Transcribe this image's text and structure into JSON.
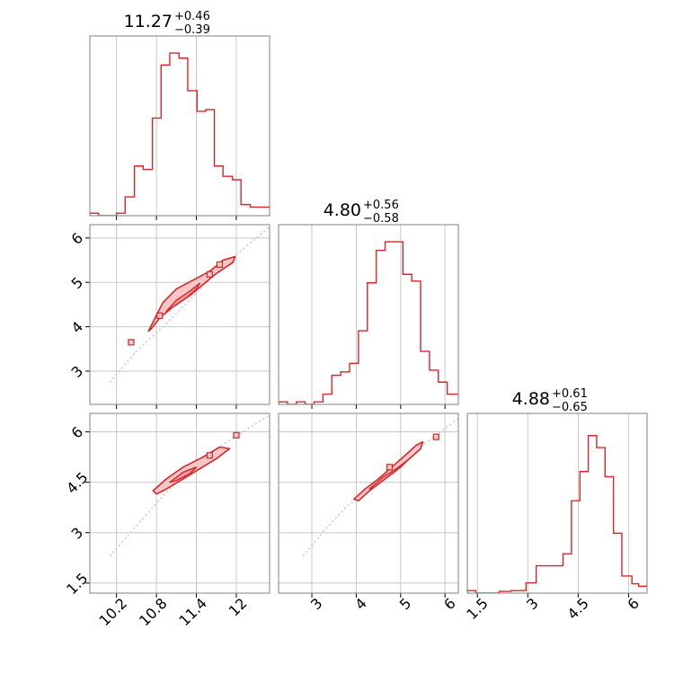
{
  "chart_data": {
    "type": "corner",
    "color": "#d62728",
    "fill_color": "#f4c7c9",
    "trace_color": "#f2a7aa",
    "grid": true,
    "panels": [
      {
        "id": "hist-p0",
        "kind": "histogram",
        "row": 0,
        "col": 0,
        "xlim": [
          9.8,
          12.5
        ],
        "ylim": [
          0,
          1.05
        ],
        "xticks": [
          10.2,
          10.8,
          11.4,
          12.0
        ],
        "title": {
          "value": "11.27",
          "plus": "+0.46",
          "minus": "−0.39"
        },
        "bin_edges": [
          9.8,
          9.93,
          10.07,
          10.2,
          10.33,
          10.47,
          10.6,
          10.74,
          10.87,
          11.0,
          11.14,
          11.27,
          11.41,
          11.54,
          11.67,
          11.8,
          11.94,
          12.07,
          12.21,
          12.35,
          12.5
        ],
        "heights": [
          0.015,
          0.0,
          0.0,
          0.015,
          0.11,
          0.29,
          0.27,
          0.57,
          0.88,
          0.95,
          0.92,
          0.73,
          0.61,
          0.62,
          0.29,
          0.23,
          0.21,
          0.065,
          0.05,
          0.05
        ]
      },
      {
        "id": "hist-p1",
        "kind": "histogram",
        "row": 1,
        "col": 1,
        "xlim": [
          2.25,
          6.3
        ],
        "ylim": [
          0,
          1.05
        ],
        "xticks": [
          3,
          4,
          5,
          6
        ],
        "title": {
          "value": "4.80",
          "plus": "+0.56",
          "minus": "−0.58"
        },
        "bin_edges": [
          2.25,
          2.45,
          2.65,
          2.85,
          3.05,
          3.25,
          3.45,
          3.65,
          3.85,
          4.05,
          4.25,
          4.45,
          4.65,
          5.05,
          5.25,
          5.45,
          5.65,
          5.85,
          6.05,
          6.3
        ],
        "heights": [
          0.015,
          0.0,
          0.015,
          0.0,
          0.015,
          0.06,
          0.17,
          0.19,
          0.24,
          0.43,
          0.71,
          0.9,
          0.95,
          0.76,
          0.72,
          0.31,
          0.2,
          0.13,
          0.06
        ]
      },
      {
        "id": "hist-p2",
        "kind": "histogram",
        "row": 2,
        "col": 2,
        "xlim": [
          1.2,
          6.55
        ],
        "ylim": [
          0,
          1.05
        ],
        "xticks": [
          1.5,
          3.0,
          4.5,
          6.0
        ],
        "title": {
          "value": "4.88",
          "plus": "+0.61",
          "minus": "−0.65"
        },
        "bin_edges": [
          1.2,
          1.45,
          1.8,
          2.15,
          2.5,
          2.95,
          3.25,
          3.55,
          4.05,
          4.3,
          4.55,
          4.8,
          5.05,
          5.3,
          5.55,
          5.8,
          6.1,
          6.3,
          6.55
        ],
        "heights": [
          0.015,
          0.0,
          0.0,
          0.01,
          0.015,
          0.06,
          0.16,
          0.16,
          0.23,
          0.54,
          0.71,
          0.92,
          0.85,
          0.68,
          0.35,
          0.1,
          0.055,
          0.04
        ]
      },
      {
        "id": "contour-p0-p1",
        "kind": "2d",
        "row": 1,
        "col": 0,
        "xlim": [
          9.8,
          12.5
        ],
        "ylim": [
          2.25,
          6.3
        ],
        "yticks": [
          3,
          4,
          5,
          6
        ],
        "trace": [
          [
            10.1,
            2.75
          ],
          [
            10.5,
            3.45
          ],
          [
            10.9,
            4.0
          ],
          [
            11.3,
            4.6
          ],
          [
            11.7,
            5.25
          ],
          [
            12.1,
            5.75
          ],
          [
            12.5,
            6.25
          ]
        ],
        "outer_contour": [
          [
            10.68,
            3.9
          ],
          [
            10.78,
            4.2
          ],
          [
            10.9,
            4.55
          ],
          [
            11.1,
            4.85
          ],
          [
            11.35,
            5.05
          ],
          [
            11.6,
            5.25
          ],
          [
            11.8,
            5.5
          ],
          [
            11.98,
            5.58
          ],
          [
            11.95,
            5.45
          ],
          [
            11.7,
            5.2
          ],
          [
            11.5,
            4.95
          ],
          [
            11.3,
            4.7
          ],
          [
            11.05,
            4.45
          ],
          [
            10.85,
            4.2
          ],
          [
            10.72,
            3.95
          ]
        ],
        "inner_contour": [
          [
            10.95,
            4.35
          ],
          [
            11.1,
            4.6
          ],
          [
            11.3,
            4.8
          ],
          [
            11.45,
            4.98
          ],
          [
            11.4,
            4.85
          ],
          [
            11.25,
            4.65
          ],
          [
            11.05,
            4.45
          ]
        ],
        "islands": [
          [
            10.42,
            3.65
          ],
          [
            10.85,
            4.25
          ],
          [
            11.6,
            5.18
          ],
          [
            11.75,
            5.4
          ]
        ]
      },
      {
        "id": "contour-p0-p2",
        "kind": "2d",
        "row": 2,
        "col": 0,
        "xlim": [
          9.8,
          12.5
        ],
        "ylim": [
          1.2,
          6.55
        ],
        "yticks": [
          1.5,
          3.0,
          4.5,
          6.0
        ],
        "trace": [
          [
            10.1,
            2.3
          ],
          [
            10.5,
            3.2
          ],
          [
            10.9,
            4.1
          ],
          [
            11.3,
            4.9
          ],
          [
            11.7,
            5.5
          ],
          [
            12.1,
            6.0
          ],
          [
            12.5,
            6.5
          ]
        ],
        "outer_contour": [
          [
            10.75,
            4.25
          ],
          [
            10.95,
            4.6
          ],
          [
            11.2,
            4.95
          ],
          [
            11.5,
            5.25
          ],
          [
            11.75,
            5.55
          ],
          [
            11.9,
            5.5
          ],
          [
            11.7,
            5.2
          ],
          [
            11.45,
            4.9
          ],
          [
            11.2,
            4.6
          ],
          [
            10.95,
            4.3
          ],
          [
            10.8,
            4.15
          ]
        ],
        "inner_contour": [
          [
            11.0,
            4.5
          ],
          [
            11.2,
            4.8
          ],
          [
            11.4,
            4.95
          ],
          [
            11.3,
            4.75
          ],
          [
            11.1,
            4.55
          ]
        ],
        "islands": [
          [
            11.6,
            5.3
          ],
          [
            12.0,
            5.9
          ]
        ]
      },
      {
        "id": "contour-p1-p2",
        "kind": "2d",
        "row": 2,
        "col": 1,
        "xlim": [
          2.25,
          6.3
        ],
        "ylim": [
          1.2,
          6.55
        ],
        "trace": [
          [
            2.8,
            2.3
          ],
          [
            3.3,
            3.1
          ],
          [
            3.8,
            3.8
          ],
          [
            4.3,
            4.3
          ],
          [
            4.8,
            4.9
          ],
          [
            5.3,
            5.4
          ],
          [
            5.8,
            5.9
          ],
          [
            6.3,
            6.4
          ]
        ],
        "outer_contour": [
          [
            3.95,
            4.0
          ],
          [
            4.2,
            4.3
          ],
          [
            4.5,
            4.6
          ],
          [
            4.8,
            4.95
          ],
          [
            5.1,
            5.3
          ],
          [
            5.35,
            5.6
          ],
          [
            5.5,
            5.7
          ],
          [
            5.45,
            5.5
          ],
          [
            5.2,
            5.2
          ],
          [
            4.9,
            4.85
          ],
          [
            4.6,
            4.55
          ],
          [
            4.3,
            4.25
          ],
          [
            4.05,
            3.95
          ]
        ],
        "inner_contour": [
          [
            4.3,
            4.3
          ],
          [
            4.6,
            4.65
          ],
          [
            4.9,
            4.9
          ],
          [
            5.15,
            5.15
          ],
          [
            5.0,
            4.95
          ],
          [
            4.7,
            4.65
          ],
          [
            4.4,
            4.35
          ]
        ],
        "islands": [
          [
            4.75,
            4.95
          ],
          [
            5.8,
            5.85
          ]
        ]
      }
    ]
  }
}
